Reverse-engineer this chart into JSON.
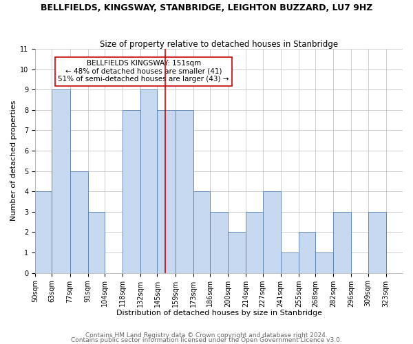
{
  "title": "BELLFIELDS, KINGSWAY, STANBRIDGE, LEIGHTON BUZZARD, LU7 9HZ",
  "subtitle": "Size of property relative to detached houses in Stanbridge",
  "xlabel": "Distribution of detached houses by size in Stanbridge",
  "ylabel": "Number of detached properties",
  "bin_labels": [
    "50sqm",
    "63sqm",
    "77sqm",
    "91sqm",
    "104sqm",
    "118sqm",
    "132sqm",
    "145sqm",
    "159sqm",
    "173sqm",
    "186sqm",
    "200sqm",
    "214sqm",
    "227sqm",
    "241sqm",
    "255sqm",
    "268sqm",
    "282sqm",
    "296sqm",
    "309sqm",
    "323sqm"
  ],
  "bin_edges": [
    50,
    63,
    77,
    91,
    104,
    118,
    132,
    145,
    159,
    173,
    186,
    200,
    214,
    227,
    241,
    255,
    268,
    282,
    296,
    309,
    323,
    336
  ],
  "counts": [
    4,
    9,
    5,
    3,
    0,
    8,
    9,
    8,
    8,
    4,
    3,
    2,
    3,
    4,
    1,
    2,
    1,
    3,
    0,
    3,
    0
  ],
  "bar_color": "#c6d9f0",
  "bar_edge_color": "#5580b0",
  "marker_value": 151,
  "marker_color": "#cc0000",
  "ylim": [
    0,
    11
  ],
  "yticks": [
    0,
    1,
    2,
    3,
    4,
    5,
    6,
    7,
    8,
    9,
    10,
    11
  ],
  "annotation_title": "BELLFIELDS KINGSWAY: 151sqm",
  "annotation_line1": "← 48% of detached houses are smaller (41)",
  "annotation_line2": "51% of semi-detached houses are larger (43) →",
  "annotation_box_color": "#cc0000",
  "footer_line1": "Contains HM Land Registry data © Crown copyright and database right 2024.",
  "footer_line2": "Contains public sector information licensed under the Open Government Licence v3.0.",
  "background_color": "#ffffff",
  "grid_color": "#bbbbbb",
  "title_fontsize": 9,
  "subtitle_fontsize": 8.5,
  "axis_label_fontsize": 8,
  "tick_fontsize": 7,
  "annotation_fontsize": 7.5,
  "footer_fontsize": 6.5
}
